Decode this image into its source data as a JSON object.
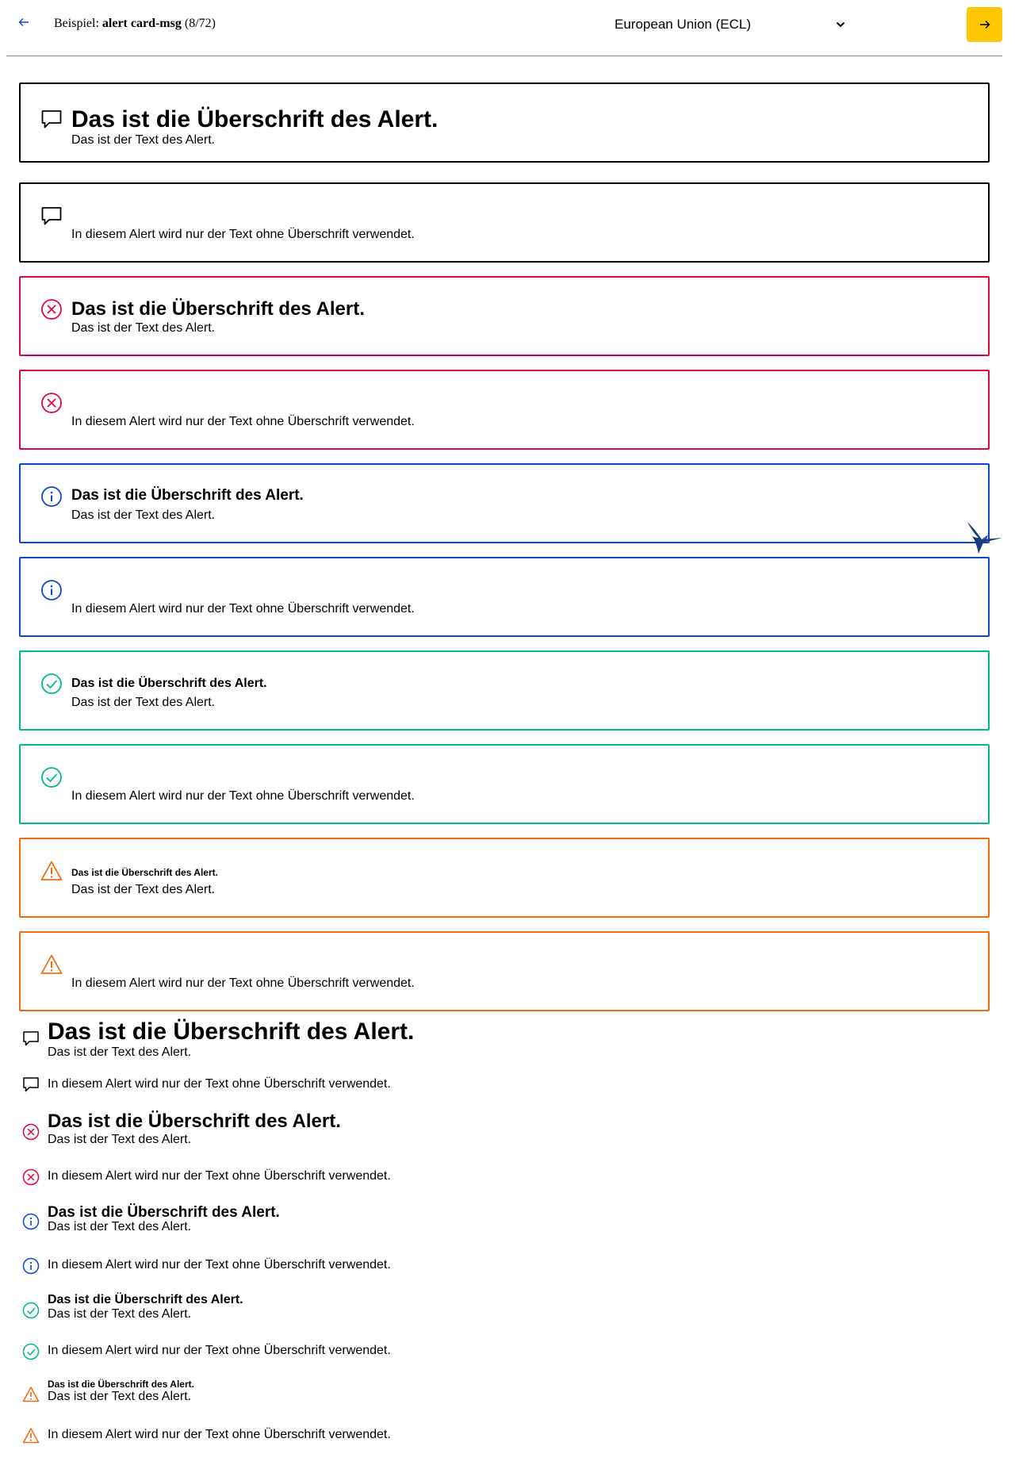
{
  "header": {
    "example_prefix": "Beispiel:",
    "example_name": "alert card-msg",
    "example_count": "(8/72)",
    "theme_select_value": "European Union (ECL)",
    "accent_color": "#ffc800"
  },
  "colors": {
    "neutral": "#000000",
    "error": "#e3063d",
    "info": "#0e47cb",
    "success": "#00b88a",
    "warning": "#f26c0d"
  },
  "alerts": {
    "title": "Das ist die Überschrift des Alert.",
    "text": "Das ist der Text des Alert.",
    "text_only": "In diesem Alert wird nur der Text ohne Überschrift verwendet."
  },
  "card_alerts": [
    {
      "type": "neutral",
      "icon": "speech-bubble-icon",
      "title": "Das ist die Überschrift des Alert.",
      "text": "Das ist der Text des Alert."
    },
    {
      "type": "neutral",
      "icon": "speech-bubble-icon",
      "title": "",
      "text": "In diesem Alert wird nur der Text ohne Überschrift verwendet."
    },
    {
      "type": "error",
      "icon": "error-circle-icon",
      "title": "Das ist die Überschrift des Alert.",
      "text": "Das ist der Text des Alert."
    },
    {
      "type": "error",
      "icon": "error-circle-icon",
      "title": "",
      "text": "In diesem Alert wird nur der Text ohne Überschrift verwendet."
    },
    {
      "type": "info",
      "icon": "info-circle-icon",
      "title": "Das ist die Überschrift des Alert.",
      "text": "Das ist der Text des Alert."
    },
    {
      "type": "info",
      "icon": "info-circle-icon",
      "title": "",
      "text": "In diesem Alert wird nur der Text ohne Überschrift verwendet."
    },
    {
      "type": "success",
      "icon": "check-circle-icon",
      "title": "Das ist die Überschrift des Alert.",
      "text": "Das ist der Text des Alert."
    },
    {
      "type": "success",
      "icon": "check-circle-icon",
      "title": "",
      "text": "In diesem Alert wird nur der Text ohne Überschrift verwendet."
    },
    {
      "type": "warning",
      "icon": "warning-triangle-icon",
      "title": "Das ist die Überschrift des Alert.",
      "text": "Das ist der Text des Alert."
    },
    {
      "type": "warning",
      "icon": "warning-triangle-icon",
      "title": "",
      "text": "In diesem Alert wird nur der Text ohne Überschrift verwendet."
    }
  ],
  "plain_alerts": [
    {
      "type": "neutral",
      "icon": "speech-bubble-icon",
      "title": "Das ist die Überschrift des Alert.",
      "text": "Das ist der Text des Alert."
    },
    {
      "type": "neutral",
      "icon": "speech-bubble-icon",
      "title": "",
      "text": "In diesem Alert wird nur der Text ohne Überschrift verwendet."
    },
    {
      "type": "error",
      "icon": "error-circle-icon",
      "title": "Das ist die Überschrift des Alert.",
      "text": "Das ist der Text des Alert."
    },
    {
      "type": "error",
      "icon": "error-circle-icon",
      "title": "",
      "text": "In diesem Alert wird nur der Text ohne Überschrift verwendet."
    },
    {
      "type": "info",
      "icon": "info-circle-icon",
      "title": "Das ist die Überschrift des Alert.",
      "text": "Das ist der Text des Alert."
    },
    {
      "type": "info",
      "icon": "info-circle-icon",
      "title": "",
      "text": "In diesem Alert wird nur der Text ohne Überschrift verwendet."
    },
    {
      "type": "success",
      "icon": "check-circle-icon",
      "title": "Das ist die Überschrift des Alert.",
      "text": "Das ist der Text des Alert."
    },
    {
      "type": "success",
      "icon": "check-circle-icon",
      "title": "",
      "text": "In diesem Alert wird nur der Text ohne Überschrift verwendet."
    },
    {
      "type": "warning",
      "icon": "warning-triangle-icon",
      "title": "Das ist die Überschrift des Alert.",
      "text": "Das ist der Text des Alert."
    },
    {
      "type": "warning",
      "icon": "warning-triangle-icon",
      "title": "",
      "text": "In diesem Alert wird nur der Text ohne Überschrift verwendet."
    }
  ]
}
